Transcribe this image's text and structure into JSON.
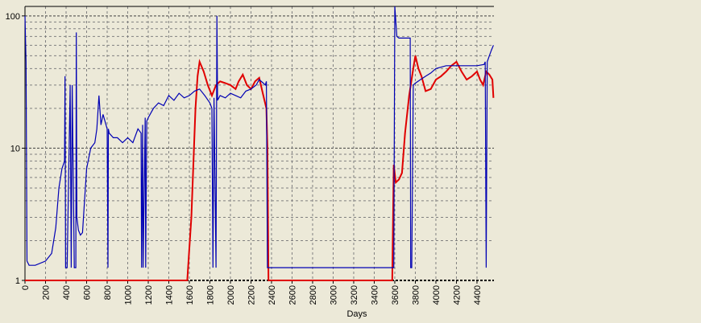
{
  "chart_data": {
    "type": "line",
    "x_label": "Days",
    "xlim": [
      0,
      4565
    ],
    "ylim": [
      1,
      118
    ],
    "log_y": true,
    "grid": true,
    "xticks": [
      0,
      200,
      400,
      600,
      800,
      1000,
      1200,
      1400,
      1600,
      1800,
      2000,
      2200,
      2400,
      2600,
      2800,
      3000,
      3200,
      3400,
      3600,
      3800,
      4000,
      4200,
      4400
    ],
    "yticks": [
      1,
      10,
      100
    ],
    "yminorticks": [
      2,
      3,
      4,
      5,
      6,
      7,
      8,
      9,
      20,
      30,
      40,
      50,
      60,
      70,
      80,
      90
    ],
    "series": [
      {
        "color": "#0000b4",
        "x": [
          0,
          10,
          20,
          40,
          100,
          200,
          260,
          300,
          330,
          360,
          385,
          390,
          395,
          410,
          440,
          450,
          460,
          480,
          495,
          500,
          505,
          520,
          540,
          560,
          580,
          600,
          640,
          680,
          700,
          720,
          740,
          760,
          800,
          808,
          812,
          820,
          860,
          900,
          950,
          1000,
          1050,
          1100,
          1130,
          1135,
          1145,
          1150,
          1170,
          1175,
          1185,
          1200,
          1250,
          1300,
          1350,
          1400,
          1450,
          1500,
          1550,
          1600,
          1650,
          1700,
          1750,
          1800,
          1820,
          1830,
          1840,
          1860,
          1868,
          1875,
          1900,
          1950,
          2000,
          2050,
          2100,
          2150,
          2200,
          2250,
          2280,
          2320,
          2340,
          2350,
          2360,
          2400,
          3000,
          3580,
          3590,
          3600,
          3620,
          3640,
          3700,
          3750,
          3755,
          3765,
          3780,
          3800,
          3850,
          3900,
          3950,
          4000,
          4100,
          4200,
          4300,
          4400,
          4470,
          4480,
          4490,
          4500,
          4520,
          4540,
          4560
        ],
        "values": [
          100,
          45,
          1.4,
          1.3,
          1.3,
          1.4,
          1.6,
          2.5,
          5,
          7,
          8,
          35,
          1.25,
          1.25,
          30,
          1.25,
          30,
          1.25,
          1.25,
          75,
          3,
          2.4,
          2.2,
          2.3,
          4,
          7,
          10,
          11,
          14,
          25,
          15,
          18,
          14,
          1.25,
          14,
          13,
          12,
          12,
          11,
          12,
          11,
          14,
          13,
          1.25,
          15,
          1.25,
          17,
          1.25,
          16,
          17,
          20,
          22,
          21,
          25,
          23,
          26,
          24,
          25,
          27,
          28,
          25,
          22,
          20,
          1.25,
          24,
          1.25,
          100,
          23,
          25,
          24,
          26,
          25,
          24,
          27,
          28,
          30,
          33,
          31,
          30,
          32,
          1.25,
          1.25,
          1.25,
          1.25,
          1.25,
          118,
          70,
          68,
          68,
          68,
          1.25,
          1.25,
          30,
          31,
          33,
          35,
          37,
          40,
          42,
          42,
          42,
          42,
          43,
          45,
          1.25,
          45,
          50,
          55,
          60
        ]
      },
      {
        "color": "#e00000",
        "x": [
          0,
          1580,
          1620,
          1660,
          1680,
          1700,
          1740,
          1780,
          1820,
          1860,
          1900,
          1950,
          2000,
          2050,
          2080,
          2120,
          2160,
          2200,
          2240,
          2280,
          2320,
          2350,
          2360,
          2370,
          3000,
          3575,
          3590,
          3610,
          3640,
          3670,
          3700,
          3740,
          3780,
          3800,
          3830,
          3860,
          3900,
          3950,
          4000,
          4050,
          4100,
          4150,
          4200,
          4250,
          4300,
          4350,
          4400,
          4430,
          4460,
          4490,
          4520,
          4550,
          4560
        ],
        "values": [
          1,
          1,
          3,
          20,
          35,
          45,
          38,
          30,
          25,
          30,
          32,
          31,
          30,
          28,
          32,
          36,
          30,
          28,
          32,
          34,
          25,
          20,
          10,
          1,
          1,
          1,
          7.5,
          5.5,
          5.8,
          6.5,
          13,
          25,
          40,
          50,
          40,
          35,
          27,
          28,
          33,
          35,
          38,
          42,
          45,
          38,
          33,
          35,
          38,
          33,
          30,
          38,
          36,
          33,
          24
        ]
      }
    ]
  }
}
